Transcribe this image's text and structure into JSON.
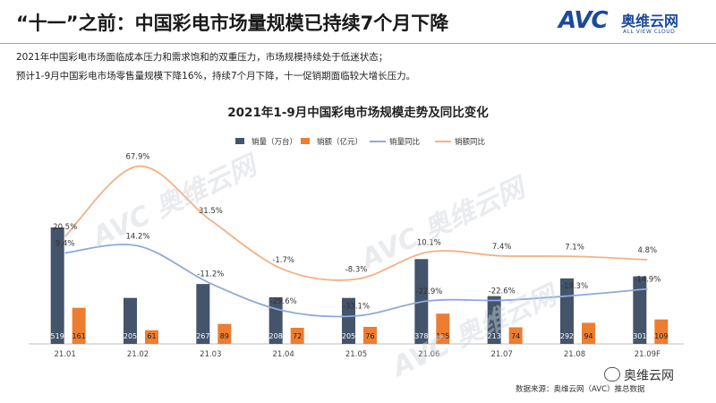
{
  "header": {
    "title": "“十一”之前：中国彩电市场量规模已持续7个月下降",
    "logo_mark": "AVC",
    "logo_cn": "奥维云网",
    "logo_en": "ALL VIEW CLOUD"
  },
  "description": [
    "2021年中国彩电市场面临成本压力和需求饱和的双重压力，市场规模持续处于低迷状态；",
    "预计1-9月中国彩电市场零售量规模下降16%，持续7个月下降，十一促销期面临较大增长压力。"
  ],
  "footer": {
    "brand": "奥维云网",
    "source": "数据来源：奥维云网（AVC）推总数据"
  },
  "colors": {
    "volume_bar": "#44546a",
    "amount_bar": "#ed7d31",
    "volume_yoy": "#8eaadb",
    "amount_yoy": "#f4b183"
  },
  "chart_data": {
    "type": "bar",
    "title": "2021年1-9月中国彩电市场规模走势及同比变化",
    "categories": [
      "21.01",
      "21.02",
      "21.03",
      "21.04",
      "21.05",
      "21.06",
      "21.07",
      "21.08",
      "21.09F"
    ],
    "series": [
      {
        "name": "销量（万台）",
        "type": "bar",
        "values": [
          519,
          205,
          267,
          208,
          205,
          378,
          213,
          292,
          301
        ]
      },
      {
        "name": "销额（亿元）",
        "type": "bar",
        "values": [
          161,
          61,
          89,
          72,
          76,
          135,
          74,
          94,
          109
        ]
      },
      {
        "name": "销量同比",
        "type": "line",
        "values": [
          9.4,
          14.2,
          -11.2,
          -29.6,
          -33.1,
          -22.9,
          -22.6,
          -19.3,
          -14.9
        ],
        "labels": [
          "9.4%",
          "14.2%",
          "-11.2%",
          "-29.6%",
          "-33.1%",
          "-22.9%",
          "-22.6%",
          "-19.3%",
          "-14.9%"
        ]
      },
      {
        "name": "销额同比",
        "type": "line",
        "values": [
          20.5,
          67.9,
          31.5,
          -1.7,
          -8.3,
          10.1,
          7.4,
          7.1,
          4.8
        ],
        "labels": [
          "20.5%",
          "67.9%",
          "31.5%",
          "-1.7%",
          "-8.3%",
          "10.1%",
          "7.4%",
          "7.1%",
          "4.8%"
        ]
      }
    ],
    "legend_position": "top-center",
    "grid": false
  }
}
